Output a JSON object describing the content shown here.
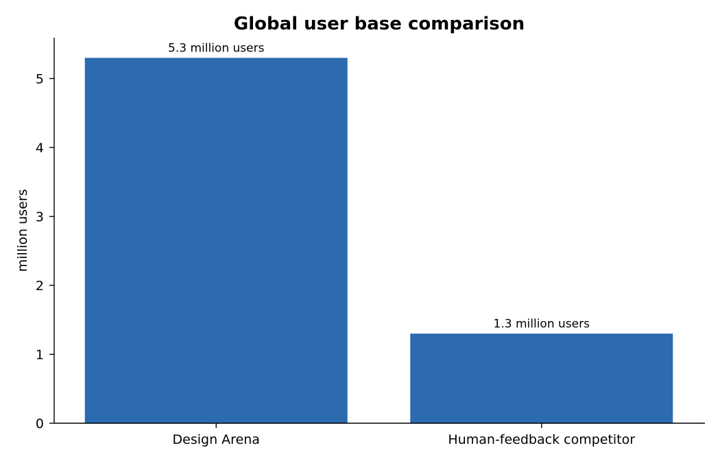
{
  "chart_data": {
    "type": "bar",
    "title": "Global user base comparison",
    "xlabel": "",
    "ylabel": "million users",
    "categories": [
      "Design Arena",
      "Human-feedback competitor"
    ],
    "values": [
      5.3,
      1.3
    ],
    "data_labels": [
      "5.3 million users",
      "1.3 million users"
    ],
    "ylim": [
      0,
      5.57
    ],
    "yticks": [
      0,
      1,
      2,
      3,
      4,
      5
    ],
    "bar_color": "#2c6bb0",
    "grid": false,
    "legend": "none"
  }
}
